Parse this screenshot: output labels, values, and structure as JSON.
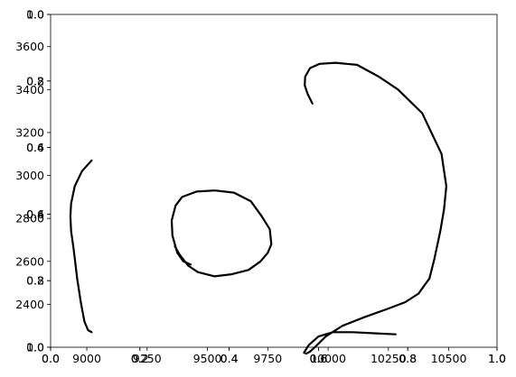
{
  "chart_data": [
    {
      "type": "line",
      "title": "",
      "xlabel": "",
      "ylabel": "",
      "xlim": [
        8850,
        10700
      ],
      "ylim": [
        2200,
        3750
      ],
      "x_ticks": [
        9000,
        9250,
        9500,
        9750,
        10000,
        10250,
        10500
      ],
      "y_ticks": [
        2400,
        2600,
        2800,
        3000,
        3200,
        3400,
        3600
      ],
      "grid": false,
      "legend": "none",
      "line_color": "#000000",
      "series": [
        {
          "x": [
            9020,
            9005,
            8990,
            8975,
            8960,
            8945,
            8935,
            8932,
            8935,
            8950,
            8980,
            9020
          ],
          "y": [
            2270,
            2280,
            2320,
            2410,
            2520,
            2660,
            2740,
            2810,
            2870,
            2950,
            3020,
            3070
          ]
        },
        {
          "x": [
            9430,
            9400,
            9375,
            9355,
            9352,
            9368,
            9395,
            9455,
            9530,
            9610,
            9680,
            9725,
            9758,
            9765,
            9750,
            9720,
            9670,
            9600,
            9530,
            9460,
            9420,
            9385,
            9365
          ],
          "y": [
            2585,
            2600,
            2640,
            2720,
            2790,
            2860,
            2900,
            2925,
            2930,
            2920,
            2880,
            2810,
            2750,
            2680,
            2640,
            2600,
            2560,
            2540,
            2530,
            2550,
            2580,
            2630,
            2670
          ]
        },
        {
          "x": [
            9935,
            9915,
            9903,
            9905,
            9925,
            9965,
            10030,
            10120,
            10210,
            10290,
            10390,
            10470,
            10490,
            10480,
            10465,
            10440,
            10420
          ],
          "y": [
            3335,
            3380,
            3420,
            3460,
            3500,
            3520,
            3525,
            3515,
            3460,
            3400,
            3290,
            3100,
            2950,
            2840,
            2740,
            2610,
            2520
          ]
        },
        {
          "x": [
            10420,
            10400,
            10375,
            10320,
            10250,
            10150,
            10060,
            9990,
            9945,
            9925,
            9910,
            9900,
            9920,
            9960,
            10020,
            10100,
            10190,
            10280
          ],
          "y": [
            2520,
            2490,
            2450,
            2410,
            2380,
            2340,
            2300,
            2250,
            2200,
            2180,
            2170,
            2175,
            2210,
            2250,
            2270,
            2270,
            2265,
            2260
          ]
        }
      ]
    },
    {
      "type": "line",
      "title": "",
      "xlabel": "",
      "ylabel": "",
      "xlim": [
        0.0,
        1.0
      ],
      "ylim": [
        0.0,
        1.0
      ],
      "x_ticks": [
        0.0,
        0.2,
        0.4,
        0.6,
        0.8,
        1.0
      ],
      "y_ticks": [
        0.0,
        0.2,
        0.4,
        0.6,
        0.8,
        1.0
      ],
      "grid": false,
      "legend": "none",
      "series": []
    },
    {
      "type": "line",
      "title": "",
      "xlabel": "",
      "ylabel": "",
      "xlim": [
        0.0,
        1.0
      ],
      "ylim": [
        1.0,
        0.0
      ],
      "x_ticks": [
        0.0,
        0.2,
        0.4,
        0.6,
        0.8,
        1.0
      ],
      "y_ticks": [
        0.0,
        0.2,
        0.4,
        0.6,
        0.8,
        1.0
      ],
      "x_tick_labels": [
        "0.0",
        "0.2",
        "0.4",
        "0.6",
        "0.8",
        "1.0"
      ],
      "y_tick_labels": [
        "0.0",
        "0.2",
        "0.4",
        "0.6",
        "0.8",
        "1.0"
      ],
      "grid": false,
      "legend": "none",
      "series": []
    }
  ]
}
